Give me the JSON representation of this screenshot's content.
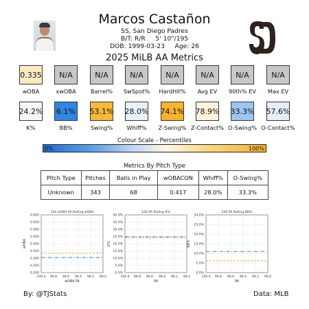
{
  "header": {
    "player_name": "Marcos Castañon",
    "position_team": "SS, San Diego Padres",
    "bats_throws": "B/T: R/R     5' 10\"/195",
    "dob_age": "DOB: 1999-03-23     Age: 26",
    "section_title": "2025 MiLB AA Metrics",
    "team_logo": "sd-monogram-logo",
    "team_color": "#2f241d"
  },
  "metric_rows": [
    [
      {
        "label": "wOBA",
        "value": "0.335",
        "color": "#fdebc2"
      },
      {
        "label": "xwOBA",
        "value": "N/A",
        "color": "#c8c8c8"
      },
      {
        "label": "Barrel%",
        "value": "N/A",
        "color": "#c8c8c8"
      },
      {
        "label": "SwSpot%",
        "value": "N/A",
        "color": "#c8c8c8"
      },
      {
        "label": "HardHit%",
        "value": "N/A",
        "color": "#c8c8c8"
      },
      {
        "label": "Avg EV",
        "value": "N/A",
        "color": "#c8c8c8"
      },
      {
        "label": "90th% EV",
        "value": "N/A",
        "color": "#c8c8c8"
      },
      {
        "label": "Max EV",
        "value": "N/A",
        "color": "#c8c8c8"
      }
    ],
    [
      {
        "label": "K%",
        "value": "24.2%",
        "color": "#f4f7fc"
      },
      {
        "label": "BB%",
        "value": "6.1%",
        "color": "#2f86e3"
      },
      {
        "label": "Swing%",
        "value": "53.1%",
        "color": "#f8b83a"
      },
      {
        "label": "Whiff%",
        "value": "28.0%",
        "color": "#eaf1fb"
      },
      {
        "label": "Z-Swing%",
        "value": "74.1%",
        "color": "#f7b22f"
      },
      {
        "label": "Z-Contact%",
        "value": "78.9%",
        "color": "#fff3dd"
      },
      {
        "label": "O-Swing%",
        "value": "33.3%",
        "color": "#9ec4ef"
      },
      {
        "label": "O-Contact%",
        "value": "57.6%",
        "color": "#e6eefa"
      }
    ]
  ],
  "colour_scale": {
    "title": "Colour Scale - Percentiles",
    "low_label": "0%",
    "high_label": "100%",
    "low_color": "#1f6ed8",
    "high_color": "#f7b12c"
  },
  "table": {
    "title": "Metrics By Pitch Type",
    "headers": [
      "Pitch Type",
      "Pitches",
      "Balls in Play",
      "wOBACON",
      "Whiff%",
      "O-Swing%"
    ],
    "rows": [
      [
        "Unknown",
        "343",
        "68",
        "0.417",
        "28.0%",
        "33.3%"
      ]
    ]
  },
  "chart_data": [
    {
      "type": "line",
      "title": "100 wOBA PA Rolling wOBA",
      "xlabel": "wOBA PA",
      "ylabel": "wOBA",
      "x_ticks": [
        "100.0",
        "99.8",
        "99.6",
        "99.4",
        "99.2",
        "99.0"
      ],
      "xlim": [
        100.0,
        99.0
      ],
      "y_ticks": [
        "0.600",
        "0.550",
        "0.500",
        "0.450",
        "0.400",
        "0.350",
        "0.300",
        "0.250",
        "0.200"
      ],
      "ylim": [
        0.2,
        0.6
      ],
      "grid": true,
      "series": [
        {
          "style": "dashed",
          "color": "#f6a623",
          "values": [
            0.335
          ]
        },
        {
          "style": "dashdot",
          "color": "#2c7fd6",
          "values": [
            0.305
          ]
        }
      ]
    },
    {
      "type": "line",
      "title": "100 PA Rolling K%",
      "xlabel": "PA",
      "ylabel": "K%",
      "x_ticks": [
        "100.0",
        "99.8",
        "99.6",
        "99.4",
        "99.2",
        "99.0"
      ],
      "xlim": [
        100.0,
        99.0
      ],
      "y_ticks": [
        "40.0%",
        "35.0%",
        "30.0%",
        "25.0%",
        "20.0%",
        "15.0%",
        "10.0%",
        "5.0%",
        "0.0%"
      ],
      "ylim": [
        0,
        40
      ],
      "grid": true,
      "series": [
        {
          "style": "dashed",
          "color": "#f6a623",
          "values": [
            24.2
          ]
        },
        {
          "style": "dashdot",
          "color": "#2c7fd6",
          "values": [
            24.8
          ]
        }
      ]
    },
    {
      "type": "line",
      "title": "100 PA Rolling BB%",
      "xlabel": "PA",
      "ylabel": "BB%",
      "x_ticks": [
        "100.0",
        "99.8",
        "99.6",
        "99.4",
        "99.2",
        "99.0"
      ],
      "xlim": [
        100.0,
        99.0
      ],
      "y_ticks": [
        "30.0%",
        "25.0%",
        "20.0%",
        "15.0%",
        "10.0%",
        "5.0%",
        "0.0%"
      ],
      "ylim": [
        0,
        30
      ],
      "grid": true,
      "series": [
        {
          "style": "dashed",
          "color": "#f6a623",
          "values": [
            6.1
          ]
        },
        {
          "style": "dashdot",
          "color": "#2c7fd6",
          "values": [
            11.0
          ]
        }
      ]
    }
  ],
  "footer": {
    "left": "By: @TJStats",
    "right": "Data: MLB"
  }
}
